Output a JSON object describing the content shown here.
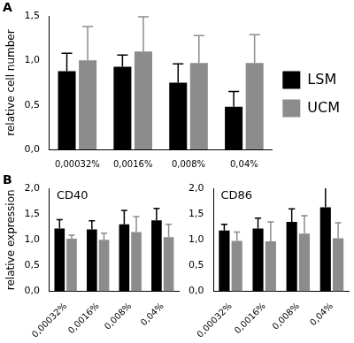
{
  "chart_data": [
    {
      "type": "bar",
      "panel_label": "A",
      "y_label": "relative cell number",
      "categories": [
        "0,00032%",
        "0,0016%",
        "0,008%",
        "0,04%"
      ],
      "series": [
        {
          "name": "LSM",
          "color": "#000000",
          "values": [
            0.88,
            0.93,
            0.75,
            0.48
          ],
          "errors": [
            0.2,
            0.13,
            0.21,
            0.17
          ]
        },
        {
          "name": "UCM",
          "color": "#8c8c8c",
          "values": [
            1.0,
            1.1,
            0.97,
            0.97
          ],
          "errors": [
            0.38,
            0.39,
            0.31,
            0.32
          ]
        }
      ],
      "ylim": [
        0,
        1.5
      ],
      "yticks": [
        {
          "value": 0,
          "label": "0,0"
        },
        {
          "value": 0.5,
          "label": "0,5"
        },
        {
          "value": 1,
          "label": "1,0"
        },
        {
          "value": 1.5,
          "label": "1,5"
        }
      ],
      "grid": false,
      "legend": "right"
    },
    {
      "type": "bar",
      "panel_label": "B",
      "title": "CD40",
      "y_label": "relative expression",
      "categories": [
        "0,00032%",
        "0,0016%",
        "0,008%",
        "0,04%"
      ],
      "series": [
        {
          "color": "#000000",
          "values": [
            1.22,
            1.2,
            1.3,
            1.38
          ],
          "errors": [
            0.17,
            0.17,
            0.27,
            0.23
          ]
        },
        {
          "color": "#8c8c8c",
          "values": [
            1.02,
            1.0,
            1.15,
            1.05
          ],
          "errors": [
            0.07,
            0.13,
            0.3,
            0.25
          ]
        }
      ],
      "ylim": [
        0,
        2
      ],
      "yticks": [
        {
          "value": 0,
          "label": "0,0"
        },
        {
          "value": 0.5,
          "label": "0,5"
        },
        {
          "value": 1,
          "label": "1,0"
        },
        {
          "value": 1.5,
          "label": "1,5"
        },
        {
          "value": 2,
          "label": "2,0"
        }
      ],
      "grid": false
    },
    {
      "type": "bar",
      "title": "CD86",
      "categories": [
        "0,00032%",
        "0,0016%",
        "0,008%",
        "0,04%"
      ],
      "series": [
        {
          "color": "#000000",
          "values": [
            1.18,
            1.22,
            1.35,
            1.63
          ],
          "errors": [
            0.12,
            0.2,
            0.25,
            0.47
          ]
        },
        {
          "color": "#8c8c8c",
          "values": [
            0.98,
            0.97,
            1.12,
            1.03
          ],
          "errors": [
            0.17,
            0.38,
            0.35,
            0.3
          ]
        }
      ],
      "ylim": [
        0,
        2
      ],
      "yticks": [
        {
          "value": 0,
          "label": "0,0"
        },
        {
          "value": 0.5,
          "label": "0,5"
        },
        {
          "value": 1,
          "label": "1,0"
        },
        {
          "value": 1.5,
          "label": "1,5"
        },
        {
          "value": 2,
          "label": "2,0"
        }
      ],
      "grid": false
    }
  ]
}
